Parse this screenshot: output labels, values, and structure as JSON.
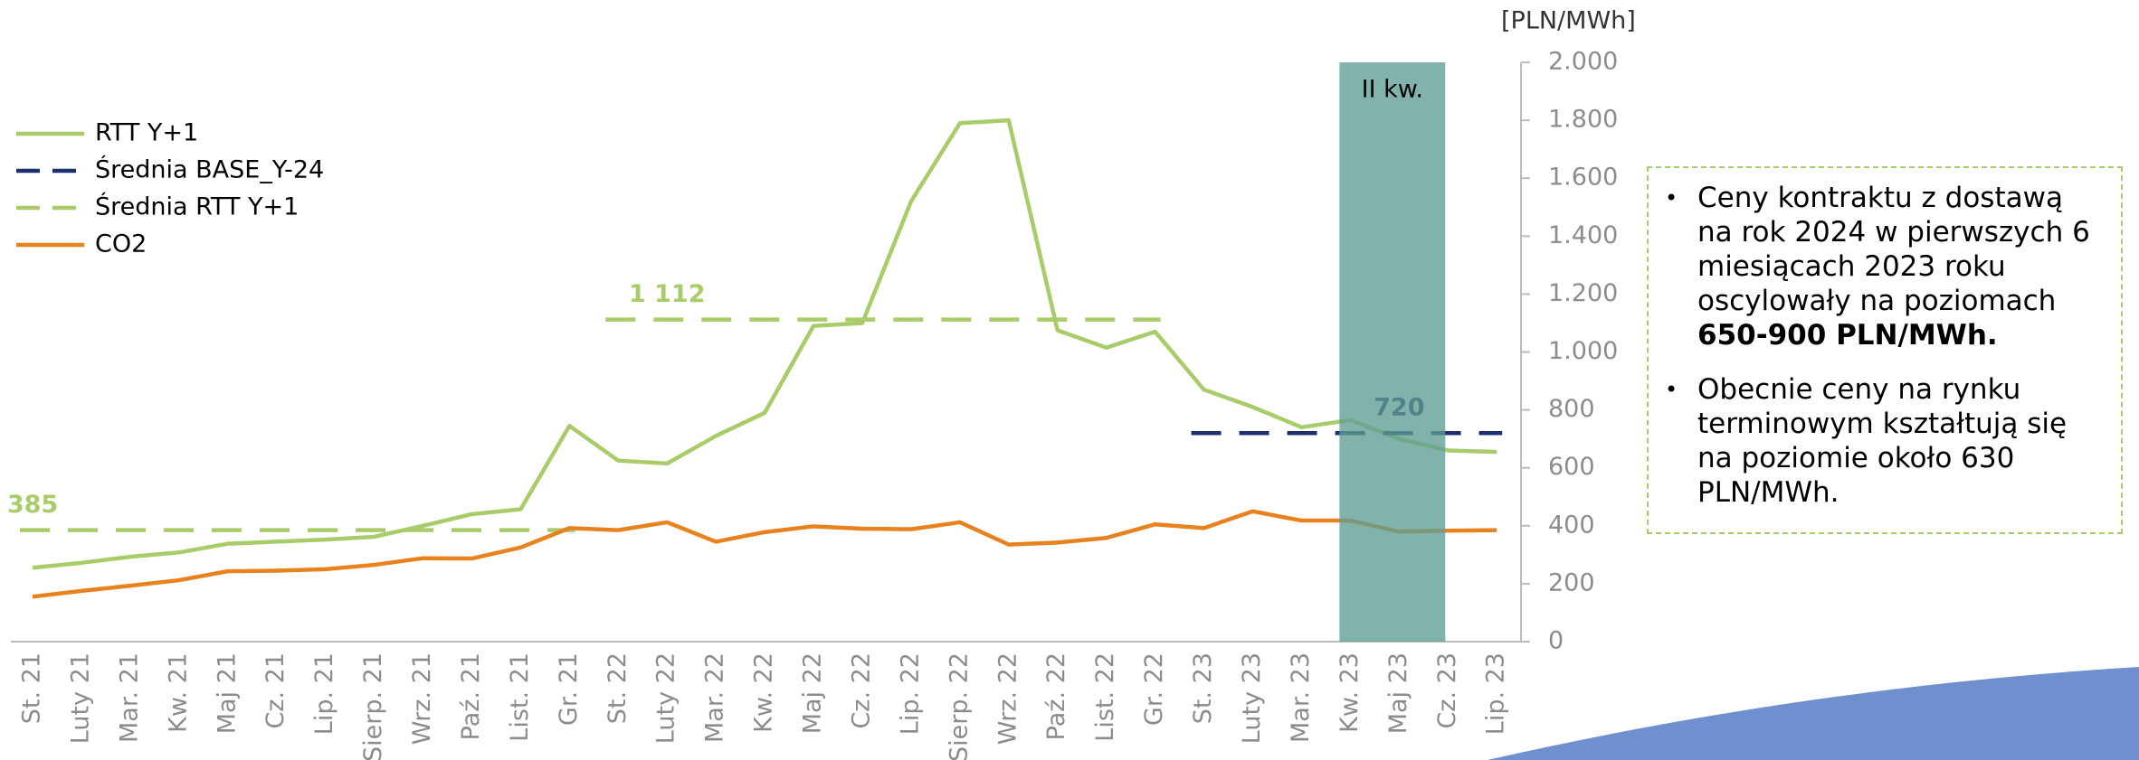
{
  "chart_data": {
    "type": "line",
    "unit_label": "[PLN/MWh]",
    "categories": [
      "St. 21",
      "Luty 21",
      "Mar. 21",
      "Kw. 21",
      "Maj 21",
      "Cz. 21",
      "Lip. 21",
      "Sierp. 21",
      "Wrz. 21",
      "Paź. 21",
      "List. 21",
      "Gr. 21",
      "St. 22",
      "Luty 22",
      "Mar. 22",
      "Kw. 22",
      "Maj 22",
      "Cz. 22",
      "Lip. 22",
      "Sierp. 22",
      "Wrz. 22",
      "Paź. 22",
      "List. 22",
      "Gr. 22",
      "St. 23",
      "Luty 23",
      "Mar. 23",
      "Kw. 23",
      "Maj 23",
      "Cz. 23",
      "Lip. 23"
    ],
    "series": [
      {
        "name": "RTT Y+1",
        "color": "#a9cc6a",
        "dashed": false,
        "values": [
          255,
          272,
          293,
          308,
          338,
          345,
          352,
          362,
          400,
          440,
          457,
          745,
          625,
          615,
          710,
          790,
          1090,
          1100,
          1520,
          1790,
          1800,
          1075,
          1015,
          1070,
          870,
          810,
          740,
          765,
          700,
          660,
          655
        ]
      },
      {
        "name": "Średnia BASE_Y-24",
        "color": "#1a2f6b",
        "dashed": true,
        "segments": [
          {
            "from": "St. 23",
            "to": "Lip. 23",
            "value": 720
          }
        ]
      },
      {
        "name": "Średnia RTT Y+1",
        "color": "#a9cc6a",
        "dashed": true,
        "segments": [
          {
            "from": "St. 21",
            "to": "Gr. 21",
            "value": 385
          },
          {
            "from": "St. 22",
            "to": "Gr. 22",
            "value": 1112,
            "value_label": "1 112"
          }
        ]
      },
      {
        "name": "CO2",
        "color": "#e8821e",
        "dashed": false,
        "values": [
          155,
          175,
          193,
          212,
          243,
          245,
          250,
          265,
          288,
          287,
          325,
          392,
          385,
          412,
          345,
          378,
          398,
          390,
          388,
          412,
          335,
          342,
          358,
          405,
          392,
          450,
          418,
          418,
          380,
          383,
          385
        ]
      }
    ],
    "highlight": {
      "label": "II kw.",
      "from": "Kw. 23",
      "to": "Cz. 23",
      "color": "#5f9e94"
    },
    "ylim": [
      0,
      2000
    ],
    "yticks": [
      0,
      {
        "value": 200,
        "label": "200"
      },
      400,
      600,
      800,
      {
        "value": 1000,
        "label": "1.000"
      },
      {
        "value": 1200,
        "label": "1.200"
      },
      {
        "value": 1400,
        "label": "1.400"
      },
      {
        "value": 1600,
        "label": "1.600"
      },
      {
        "value": 1800,
        "label": "1.800"
      },
      {
        "value": 2000,
        "label": "2.000"
      }
    ],
    "grid": false,
    "legend": "upper left"
  },
  "notes": [
    {
      "text": "Ceny kontraktu z dostawą na rok 2024 w pierwszych 6 miesiącach 2023 roku oscylowały na poziomach",
      "bold": "650-900 PLN/MWh."
    },
    {
      "text": "Obecnie ceny na rynku terminowym kształtują się na poziomie około 630 PLN/MWh."
    }
  ]
}
